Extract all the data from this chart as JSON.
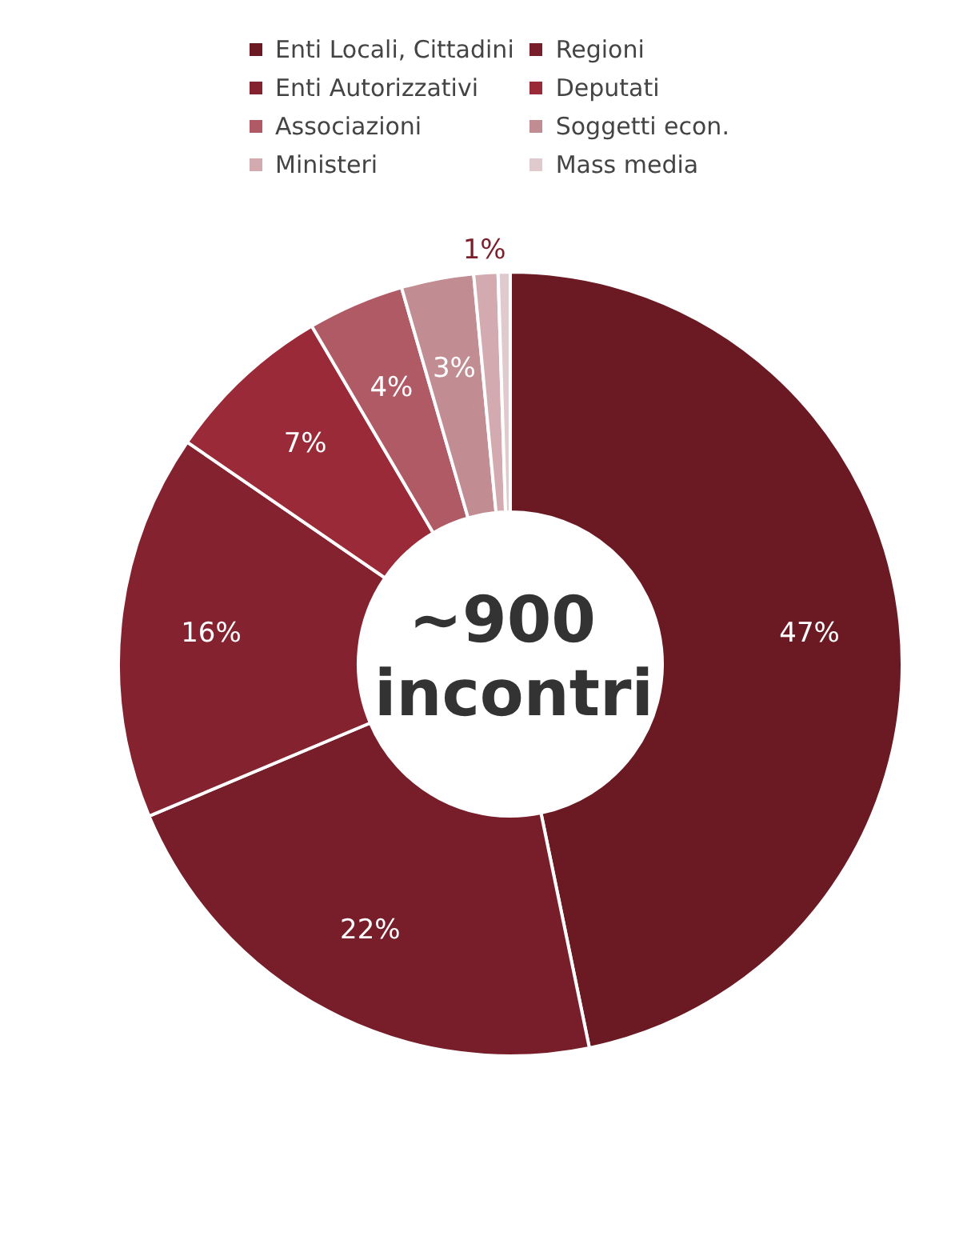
{
  "chart_data": {
    "type": "donut",
    "categories": [
      "Enti Locali, Cittadini",
      "Regioni",
      "Enti Autorizzativi",
      "Deputati",
      "Associazioni",
      "Soggetti econ.",
      "Ministeri",
      "Mass media"
    ],
    "values": [
      47,
      22,
      16,
      7,
      4,
      3,
      1,
      0.5
    ],
    "value_labels": [
      "47%",
      "22%",
      "16%",
      "7%",
      "4%",
      "3%",
      "1%",
      null
    ],
    "colors": [
      "#6b1a24",
      "#771e2a",
      "#852230",
      "#9a2a38",
      "#b05a66",
      "#c28c93",
      "#d2aab0",
      "#e0cacd"
    ],
    "legend": "top",
    "annotations": [
      "~900 incontri"
    ]
  }
}
